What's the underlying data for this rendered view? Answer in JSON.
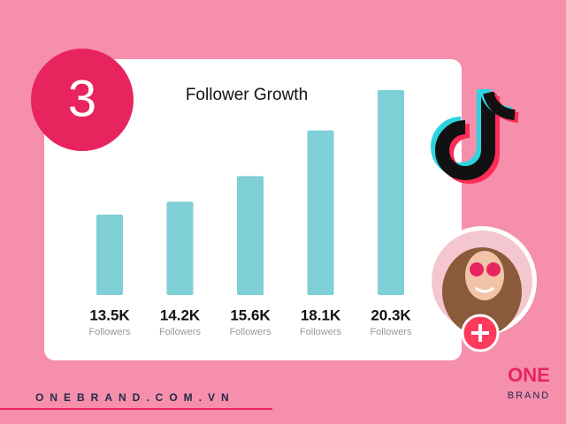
{
  "chart_data": {
    "type": "bar",
    "title": "Follower Growth",
    "categories": [
      null,
      null,
      null,
      null,
      null
    ],
    "values": [
      13500,
      14200,
      15600,
      18100,
      20300
    ],
    "value_labels": [
      "13.5K",
      "14.2K",
      "15.6K",
      "18.1K",
      "20.3K"
    ],
    "value_sublabel": "Followers",
    "color": "#7ecfd6",
    "ylim": [
      9100,
      20300
    ],
    "grid": false
  },
  "badge": "3",
  "footer": {
    "website": "ONEBRAND.COM.VN",
    "logo_top": "ONE",
    "logo_bottom": "BRAND"
  }
}
